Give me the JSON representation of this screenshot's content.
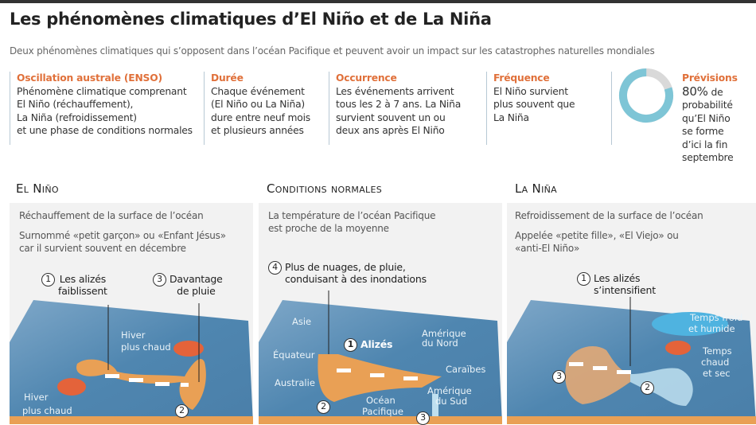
{
  "title": "Les phénomènes climatiques d’El Niño et de La Niña",
  "subtitle": "Deux phénomènes climatiques qui s’opposent dans l’océan Pacifique et peuvent avoir un impact sur les catastrophes naturelles mondiales",
  "info": [
    {
      "heading": "Oscillation australe (ENSO)",
      "lines": [
        "Phénomène climatique comprenant",
        "El Niño (réchauffement),",
        "La Niña (refroidissement)",
        "et une phase de conditions normales"
      ]
    },
    {
      "heading": "Durée",
      "lines": [
        "Chaque événement",
        "(El Niño ou La Niña)",
        "dure entre neuf mois",
        "et plusieurs années"
      ]
    },
    {
      "heading": "Occurrence",
      "lines": [
        "Les événements arrivent",
        "tous les 2 à 7 ans. La Niña",
        "survient souvent un ou",
        "deux ans après El Niño"
      ]
    },
    {
      "heading": "Fréquence",
      "lines": [
        "El Niño survient",
        "plus souvent que",
        "La Niña"
      ]
    }
  ],
  "forecast": {
    "heading": "Prévisions",
    "percent_label": "80%",
    "lines": [
      "de",
      "probabilité",
      "qu’El Niño",
      "se forme",
      "d’ici la fin",
      "septembre"
    ],
    "percent_value": 80,
    "fill_color": "#7ec5d6",
    "rest_color": "#d9d9d9"
  },
  "colors": {
    "accent": "#e0703a",
    "ocean": "#4f86b0",
    "warm": "#e9a055",
    "hot": "#e4633a",
    "cold": "#4fb3e0"
  },
  "panels": [
    {
      "title": "El Niño",
      "desc1": "Réchauffement de la surface de l’océan",
      "desc2": [
        "Surnommé «petit garçon» ou «Enfant Jésus»",
        "car il survient souvent en décembre"
      ],
      "callouts": [
        {
          "n": "1",
          "text": [
            "Les alizés",
            "faiblissent"
          ]
        },
        {
          "n": "3",
          "text": [
            "Davantage",
            "de pluie"
          ]
        },
        {
          "n": "2",
          "text": []
        }
      ],
      "map_labels": [
        "Hiver",
        "plus chaud",
        "Hiver",
        "plus chaud"
      ]
    },
    {
      "title": "Conditions normales",
      "desc1": [
        "La température de l’océan Pacifique",
        "est proche de la moyenne"
      ],
      "callouts": [
        {
          "n": "4",
          "text": [
            "Plus de nuages, de pluie,",
            "conduisant à des inondations"
          ]
        },
        {
          "n": "1",
          "text": [
            "Alizés"
          ]
        },
        {
          "n": "2",
          "text": []
        },
        {
          "n": "3",
          "text": []
        }
      ],
      "map_labels": [
        "Asie",
        "Équateur",
        "Australie",
        "Amérique",
        "du Nord",
        "Caraïbes",
        "Amérique",
        "du Sud",
        "Océan",
        "Pacifique"
      ]
    },
    {
      "title": "La Niña",
      "desc1": "Refroidissement de la surface de l’océan",
      "desc2": [
        "Appelée «petite fille», «El Viejo» ou",
        "«anti-El Niño»"
      ],
      "callouts": [
        {
          "n": "1",
          "text": [
            "Les alizés",
            "s’intensifient"
          ]
        },
        {
          "n": "3",
          "text": []
        },
        {
          "n": "2",
          "text": []
        }
      ],
      "map_labels": [
        "Temps froid",
        "et humide",
        "Temps",
        "chaud",
        "et sec"
      ]
    }
  ]
}
